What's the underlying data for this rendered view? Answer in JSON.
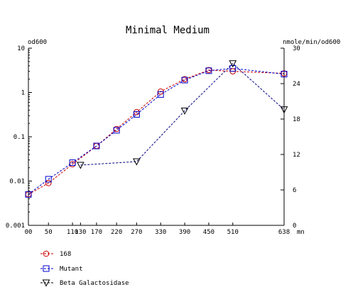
{
  "chart_data": {
    "type": "line",
    "title": "Minimal Medium",
    "left_axis": {
      "label": "od600",
      "scale": "log",
      "range": [
        0.001,
        10
      ],
      "ticks": [
        "0.001",
        "0.01",
        "0.1",
        "1",
        "10"
      ]
    },
    "right_axis": {
      "label": "nmole/min/od600",
      "scale": "linear",
      "range": [
        0,
        30
      ],
      "ticks": [
        "0",
        "6",
        "12",
        "18",
        "24",
        "30"
      ]
    },
    "x_axis": {
      "unit": "mn",
      "range": [
        0,
        638
      ],
      "ticks": [
        "00",
        "50",
        "110",
        "130",
        "170",
        "220",
        "270",
        "330",
        "390",
        "450",
        "510",
        "638"
      ],
      "tick_values": [
        0,
        50,
        110,
        130,
        170,
        220,
        270,
        330,
        390,
        450,
        510,
        638
      ]
    },
    "grid": false,
    "legend_position": "bottom-left",
    "series": [
      {
        "name": "168",
        "axis": "left",
        "color": "#cc0000",
        "line_color": "#cc0000",
        "marker": "circle",
        "x": [
          0,
          50,
          110,
          170,
          220,
          270,
          330,
          390,
          450,
          510,
          638
        ],
        "y": [
          0.005,
          0.009,
          0.024,
          0.062,
          0.15,
          0.36,
          1.05,
          2.0,
          3.2,
          3.0,
          2.7
        ]
      },
      {
        "name": "Mutant",
        "axis": "left",
        "color": "#0000cc",
        "line_color": "#0000cc",
        "marker": "square",
        "x": [
          0,
          50,
          110,
          170,
          220,
          270,
          330,
          390,
          450,
          510,
          638
        ],
        "y": [
          0.005,
          0.011,
          0.026,
          0.062,
          0.14,
          0.32,
          0.9,
          1.9,
          3.1,
          3.5,
          2.6
        ]
      },
      {
        "name": "Beta Galactosidase",
        "axis": "right",
        "color": "#000000",
        "line_color": "#000080",
        "marker": "triangle-down",
        "x": [
          130,
          270,
          390,
          510,
          638
        ],
        "y": [
          10.2,
          10.8,
          19.4,
          27.4,
          19.6
        ]
      }
    ]
  }
}
